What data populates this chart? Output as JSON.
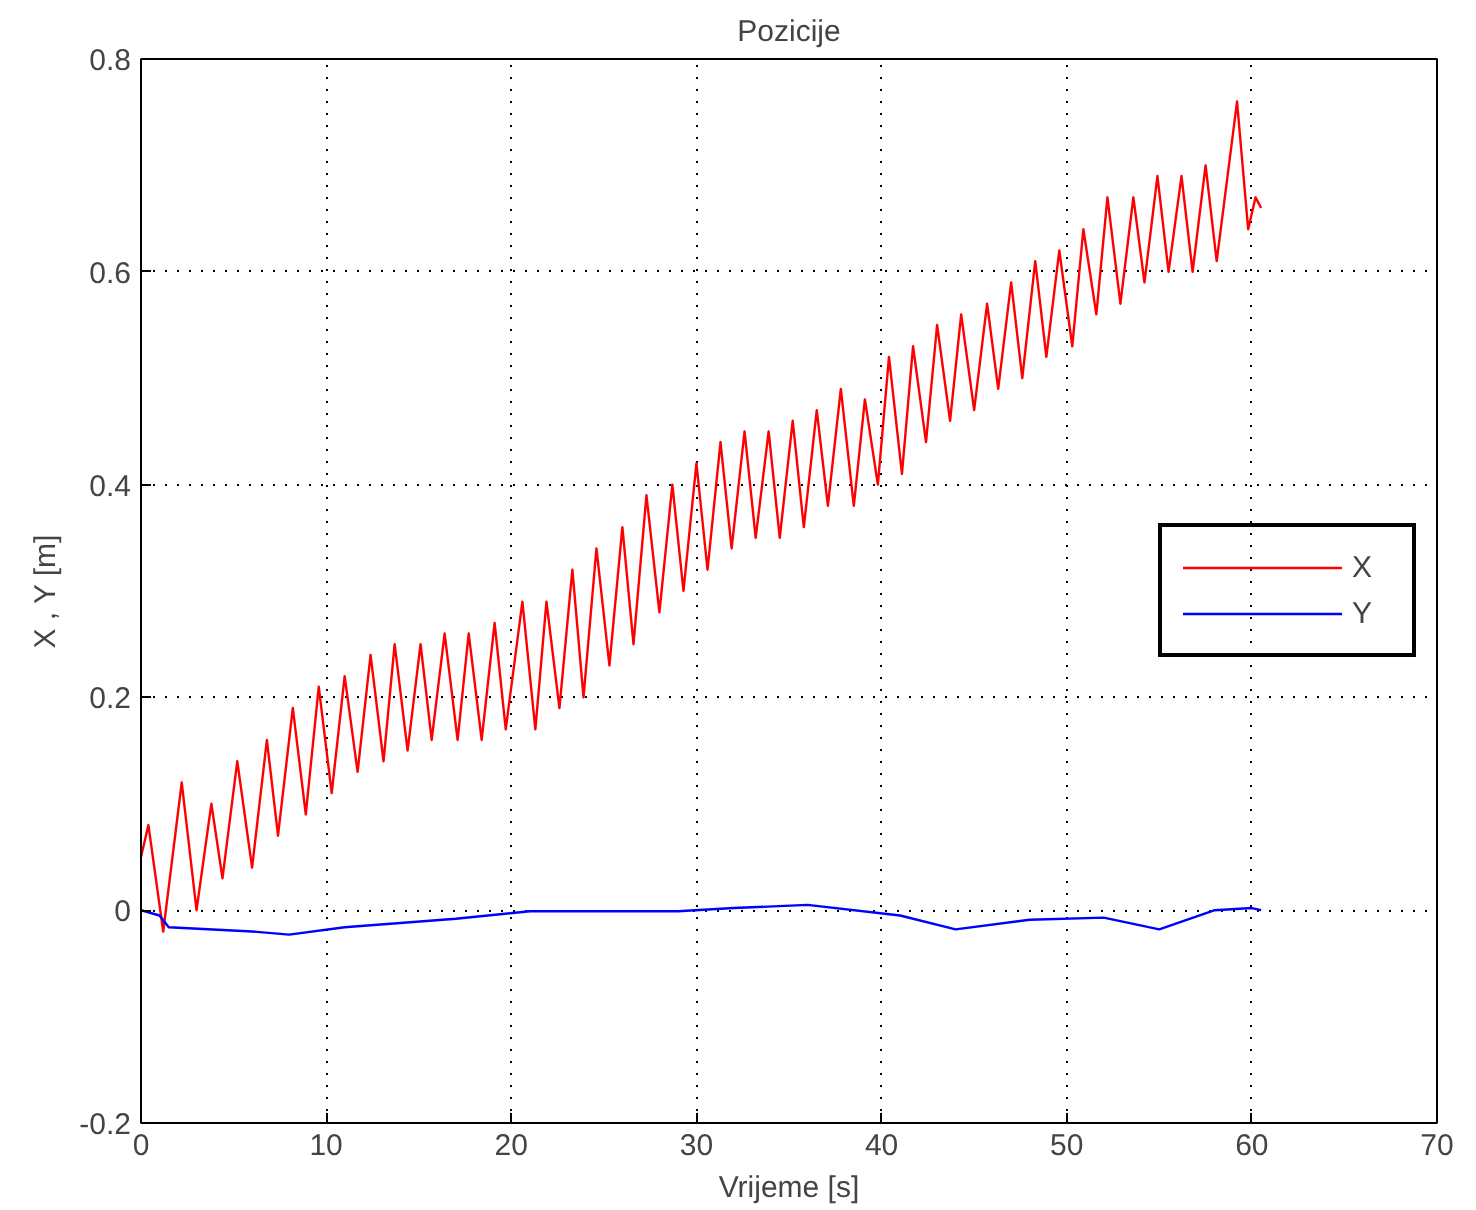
{
  "chart_data": {
    "type": "line",
    "title": "Pozicije",
    "xlabel": "Vrijeme [s]",
    "ylabel": "X , Y [m]",
    "xlim": [
      0,
      70
    ],
    "ylim": [
      -0.2,
      0.8
    ],
    "xticks": [
      0,
      10,
      20,
      30,
      40,
      50,
      60,
      70
    ],
    "yticks": [
      -0.2,
      0,
      0.2,
      0.4,
      0.6,
      0.8
    ],
    "grid": true,
    "legend": "right",
    "series": [
      {
        "name": "X",
        "color": "#ff0000",
        "x": [
          0,
          0.4,
          1.2,
          2.2,
          3.0,
          3.8,
          4.4,
          5.2,
          6.0,
          6.8,
          7.4,
          8.2,
          8.9,
          9.6,
          10.3,
          11.0,
          11.7,
          12.4,
          13.1,
          13.7,
          14.4,
          15.1,
          15.7,
          16.4,
          17.1,
          17.7,
          18.4,
          19.1,
          19.7,
          20.6,
          21.3,
          21.9,
          22.6,
          23.3,
          23.9,
          24.6,
          25.3,
          26.0,
          26.6,
          27.3,
          28.0,
          28.7,
          29.3,
          30.0,
          30.6,
          31.3,
          31.9,
          32.6,
          33.2,
          33.9,
          34.5,
          35.2,
          35.8,
          36.5,
          37.1,
          37.8,
          38.5,
          39.1,
          39.8,
          40.4,
          41.1,
          41.7,
          42.4,
          43.0,
          43.7,
          44.3,
          45.0,
          45.7,
          46.3,
          47.0,
          47.6,
          48.3,
          48.9,
          49.6,
          50.3,
          50.9,
          51.6,
          52.2,
          52.9,
          53.6,
          54.2,
          54.9,
          55.5,
          56.2,
          56.8,
          57.5,
          58.1,
          59.2,
          59.8,
          60.2,
          60.5
        ],
        "values": [
          0.05,
          0.08,
          -0.02,
          0.12,
          0.0,
          0.1,
          0.03,
          0.14,
          0.04,
          0.16,
          0.07,
          0.19,
          0.09,
          0.21,
          0.11,
          0.22,
          0.13,
          0.24,
          0.14,
          0.25,
          0.15,
          0.25,
          0.16,
          0.26,
          0.16,
          0.26,
          0.16,
          0.27,
          0.17,
          0.29,
          0.17,
          0.29,
          0.19,
          0.32,
          0.2,
          0.34,
          0.23,
          0.36,
          0.25,
          0.39,
          0.28,
          0.4,
          0.3,
          0.42,
          0.32,
          0.44,
          0.34,
          0.45,
          0.35,
          0.45,
          0.35,
          0.46,
          0.36,
          0.47,
          0.38,
          0.49,
          0.38,
          0.48,
          0.4,
          0.52,
          0.41,
          0.53,
          0.44,
          0.55,
          0.46,
          0.56,
          0.47,
          0.57,
          0.49,
          0.59,
          0.5,
          0.61,
          0.52,
          0.62,
          0.53,
          0.64,
          0.56,
          0.67,
          0.57,
          0.67,
          0.59,
          0.69,
          0.6,
          0.69,
          0.6,
          0.7,
          0.61,
          0.76,
          0.64,
          0.67,
          0.66
        ]
      },
      {
        "name": "Y",
        "color": "#0000ff",
        "x": [
          0,
          1,
          1.5,
          6,
          8,
          11,
          17,
          21,
          29,
          32,
          36,
          41,
          44,
          48,
          52,
          55,
          58,
          60,
          60.5
        ],
        "values": [
          0,
          -0.005,
          -0.016,
          -0.02,
          -0.023,
          -0.016,
          -0.008,
          -0.001,
          -0.001,
          0.002,
          0.005,
          -0.005,
          -0.018,
          -0.009,
          -0.007,
          -0.018,
          0,
          0.002,
          0
        ]
      }
    ]
  }
}
